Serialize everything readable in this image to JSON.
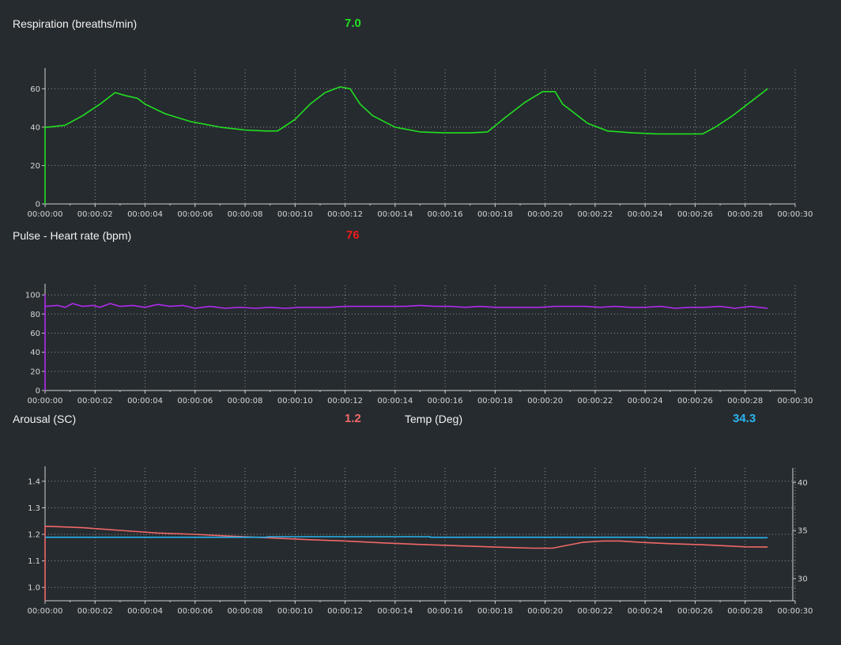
{
  "panels": {
    "respiration": {
      "label": "Respiration (breaths/min)",
      "value": "7.0",
      "color": "#22e022"
    },
    "pulse": {
      "label": "Pulse - Heart rate (bpm)",
      "value": "76",
      "color": "#ee1c1c"
    },
    "arousal": {
      "label": "Arousal (SC)",
      "value": "1.2",
      "color": "#f06868"
    },
    "temp": {
      "label": "Temp (Deg)",
      "value": "34.3",
      "color": "#2ab4f0"
    }
  },
  "chart_data": [
    {
      "type": "line",
      "xlim": [
        0,
        30
      ],
      "ylim": [
        0,
        70
      ],
      "yticks": [
        0,
        20,
        40,
        60
      ],
      "xticks": [
        "00:00:00",
        "00:00:02",
        "00:00:04",
        "00:00:06",
        "00:00:08",
        "00:00:10",
        "00:00:12",
        "00:00:14",
        "00:00:16",
        "00:00:18",
        "00:00:20",
        "00:00:22",
        "00:00:24",
        "00:00:26",
        "00:00:28",
        "00:00:30"
      ],
      "grid": true,
      "series": [
        {
          "color": "#22e022",
          "x": [
            0,
            0,
            0.1,
            0.8,
            1.5,
            2.2,
            2.8,
            3.2,
            3.7,
            4,
            4.8,
            5.8,
            7,
            8,
            8.8,
            9.3,
            10,
            10.6,
            11.2,
            11.8,
            12.2,
            12.6,
            13.1,
            14,
            15,
            16,
            17,
            17.7,
            18.4,
            19.2,
            19.9,
            20.4,
            20.7,
            21.1,
            21.7,
            22.5,
            23.5,
            24.5,
            25.5,
            26.3,
            26.8,
            27.5,
            28.2,
            28.9
          ],
          "y": [
            0,
            40,
            40,
            41,
            46,
            52,
            58,
            56.5,
            55,
            52,
            47,
            43,
            40,
            38.5,
            38,
            38,
            44,
            52,
            58,
            61,
            60,
            52,
            46,
            40,
            37.5,
            37,
            37,
            37.5,
            45,
            53,
            58.5,
            58.5,
            52,
            48,
            42,
            38,
            37,
            36.5,
            36.5,
            36.5,
            40,
            46,
            53,
            60
          ]
        }
      ]
    },
    {
      "type": "line",
      "xlim": [
        0,
        30
      ],
      "ylim": [
        0,
        110
      ],
      "yticks": [
        0,
        20,
        40,
        60,
        80,
        100
      ],
      "xticks": [
        "00:00:00",
        "00:00:02",
        "00:00:04",
        "00:00:06",
        "00:00:08",
        "00:00:10",
        "00:00:12",
        "00:00:14",
        "00:00:16",
        "00:00:18",
        "00:00:20",
        "00:00:22",
        "00:00:24",
        "00:00:26",
        "00:00:28",
        "00:00:30"
      ],
      "grid": true,
      "series": [
        {
          "color": "#b12bee",
          "x": [
            0,
            0,
            0,
            0.5,
            0.8,
            1.1,
            1.5,
            1.9,
            2.2,
            2.6,
            3,
            3.5,
            4,
            4.5,
            5,
            5.5,
            6,
            6.6,
            7.2,
            7.8,
            8.4,
            9,
            9.6,
            10.2,
            10.8,
            11.4,
            12,
            12.6,
            13.2,
            13.8,
            14.4,
            15,
            15.6,
            16.2,
            16.8,
            17.4,
            18,
            18.6,
            19.2,
            19.8,
            20.4,
            21,
            21.6,
            22.2,
            22.8,
            23.4,
            24,
            24.6,
            25.2,
            25.8,
            26.4,
            27,
            27.6,
            28.2,
            28.9
          ],
          "y": [
            0,
            100,
            88,
            89,
            87,
            91,
            88,
            89,
            87,
            91,
            88,
            89,
            87,
            90,
            88,
            89,
            86,
            88,
            86,
            87,
            86,
            87,
            86,
            87,
            87,
            87,
            88,
            88,
            88,
            88,
            88,
            89,
            88,
            88,
            87,
            88,
            87,
            87,
            87,
            87,
            88,
            88,
            88,
            87,
            88,
            87,
            87,
            88,
            86,
            87,
            87,
            88,
            86,
            88,
            86
          ]
        }
      ]
    },
    {
      "type": "line",
      "xlim": [
        0,
        30
      ],
      "ylim": [
        0.95,
        1.45
      ],
      "yticks": [
        1.0,
        1.1,
        1.2,
        1.3,
        1.4
      ],
      "y2lim": [
        27.7,
        41.5
      ],
      "y2ticks": [
        30,
        35,
        40
      ],
      "xticks": [
        "00:00:00",
        "00:00:02",
        "00:00:04",
        "00:00:06",
        "00:00:08",
        "00:00:10",
        "00:00:12",
        "00:00:14",
        "00:00:16",
        "00:00:18",
        "00:00:20",
        "00:00:22",
        "00:00:24",
        "00:00:26",
        "00:00:28",
        "00:00:30"
      ],
      "grid": true,
      "series": [
        {
          "name": "Arousal (SC)",
          "axis": "left",
          "color": "#f06868",
          "x": [
            0,
            0,
            0.2,
            1.5,
            3,
            4.5,
            6,
            7.5,
            9,
            10.5,
            12,
            13.5,
            15,
            16.5,
            18,
            19.5,
            20.3,
            20.8,
            21.5,
            22.3,
            23,
            23.8,
            25,
            26.5,
            28,
            28.9
          ],
          "y": [
            0.95,
            1.23,
            1.23,
            1.225,
            1.215,
            1.205,
            1.2,
            1.193,
            1.187,
            1.18,
            1.175,
            1.168,
            1.162,
            1.157,
            1.152,
            1.148,
            1.148,
            1.157,
            1.17,
            1.175,
            1.175,
            1.17,
            1.165,
            1.16,
            1.153,
            1.152
          ]
        },
        {
          "name": "Temp (Deg)",
          "axis": "right",
          "color": "#2ab4f0",
          "x": [
            0,
            8.9,
            8.9,
            15.4,
            15.4,
            24.1,
            24.1,
            28.9
          ],
          "y": [
            34.3,
            34.3,
            34.35,
            34.35,
            34.3,
            34.3,
            34.25,
            34.25
          ]
        }
      ]
    }
  ]
}
